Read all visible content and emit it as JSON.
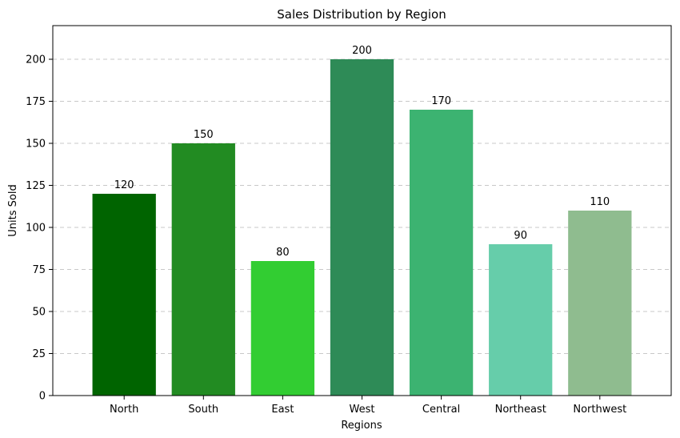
{
  "chart_data": {
    "type": "bar",
    "title": "Sales Distribution by Region",
    "xlabel": "Regions",
    "ylabel": "Units Sold",
    "categories": [
      "North",
      "South",
      "East",
      "West",
      "Central",
      "Northeast",
      "Northwest"
    ],
    "values": [
      120,
      150,
      80,
      200,
      170,
      90,
      110
    ],
    "colors": [
      "#006400",
      "#228B22",
      "#32CD32",
      "#2E8B57",
      "#3CB371",
      "#66CDAA",
      "#8FBC8F"
    ],
    "ylim": [
      0,
      220
    ],
    "yticks": [
      0,
      25,
      50,
      75,
      100,
      125,
      150,
      175,
      200
    ],
    "grid": "y-dashed",
    "grid_color": "#c8c8c8",
    "legend": "none"
  }
}
